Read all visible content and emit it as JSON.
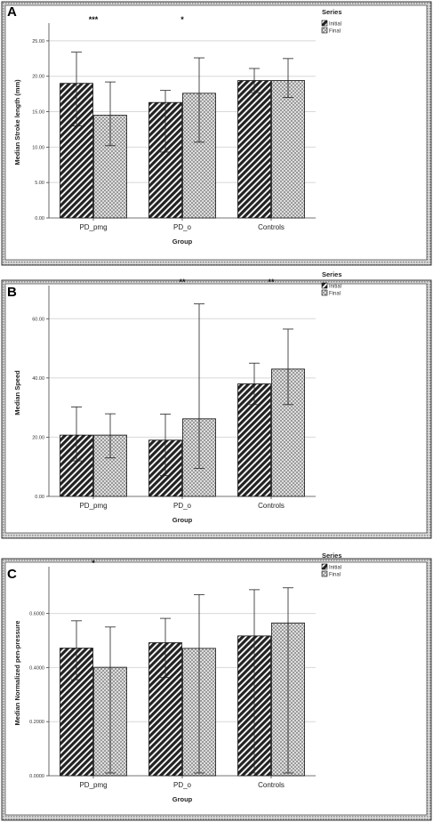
{
  "colors": {
    "initial_fill": "#222222",
    "final_fill": "#f0f0f0",
    "grid": "#d8d8d8",
    "frame": "#777777"
  },
  "legend": {
    "title": "Series",
    "items": [
      {
        "label": "Initial",
        "pattern": "diagonal-hatch"
      },
      {
        "label": "Final",
        "pattern": "crosshatch"
      }
    ]
  },
  "chart_data": [
    {
      "type": "bar",
      "panel_label": "A",
      "categories": [
        "PD_pmg",
        "PD_o",
        "Controls"
      ],
      "xlabel": "Group",
      "ylabel": "Median Stroke length (mm)",
      "ylim": [
        0,
        27
      ],
      "yticks": [
        0,
        5,
        10,
        15,
        20,
        25
      ],
      "ytick_labels": [
        "0.00",
        "5.00",
        "10.00",
        "15.00",
        "20.00",
        "25.00"
      ],
      "grid": true,
      "legend_position": "top-right",
      "series": [
        {
          "name": "Initial",
          "values": [
            19.0,
            16.3,
            19.4
          ],
          "err_low": [
            13.0,
            9.3,
            17.7
          ],
          "err_high": [
            23.4,
            18.0,
            21.1
          ]
        },
        {
          "name": "Final",
          "values": [
            14.5,
            17.6,
            19.4
          ],
          "err_low": [
            10.2,
            10.7,
            17.0
          ],
          "err_high": [
            19.2,
            22.6,
            22.5
          ]
        }
      ],
      "significance": [
        {
          "category": "PD_pmg",
          "label": "***"
        },
        {
          "category": "PD_o",
          "label": "*"
        }
      ]
    },
    {
      "type": "bar",
      "panel_label": "B",
      "categories": [
        "PD_pmg",
        "PD_o",
        "Controls"
      ],
      "xlabel": "Group",
      "ylabel": "Median Speed",
      "ylim": [
        0,
        70
      ],
      "yticks": [
        0,
        20,
        40,
        60
      ],
      "ytick_labels": [
        "0.00",
        "20.00",
        "40.00",
        "60.00"
      ],
      "grid": true,
      "legend_position": "top-right",
      "series": [
        {
          "name": "Initial",
          "values": [
            20.7,
            19.0,
            38.0
          ],
          "err_low": [
            12.0,
            7.0,
            31.0
          ],
          "err_high": [
            30.2,
            27.8,
            45.0
          ]
        },
        {
          "name": "Final",
          "values": [
            20.7,
            26.2,
            43.0
          ],
          "err_low": [
            13.0,
            9.5,
            31.0
          ],
          "err_high": [
            27.9,
            65.0,
            56.5
          ]
        }
      ],
      "significance": [
        {
          "category": "PD_o",
          "label": "**"
        },
        {
          "category": "Controls",
          "label": "**"
        }
      ]
    },
    {
      "type": "bar",
      "panel_label": "C",
      "categories": [
        "PD_pmg",
        "PD_o",
        "Controls"
      ],
      "xlabel": "Group",
      "ylabel": "Median Normalized pen-pressure",
      "ylim": [
        0,
        0.76
      ],
      "yticks": [
        0,
        0.2,
        0.4,
        0.6
      ],
      "ytick_labels": [
        "0.0000",
        "0.2000",
        "0.4000",
        "0.6000"
      ],
      "grid": true,
      "legend_position": "top-right",
      "series": [
        {
          "name": "Initial",
          "values": [
            0.472,
            0.492,
            0.517
          ],
          "err_low": [
            0.355,
            0.363,
            0.01
          ],
          "err_high": [
            0.573,
            0.582,
            0.688
          ]
        },
        {
          "name": "Final",
          "values": [
            0.401,
            0.471,
            0.565
          ],
          "err_low": [
            0.01,
            0.01,
            0.01
          ],
          "err_high": [
            0.55,
            0.67,
            0.695
          ]
        }
      ],
      "significance": [
        {
          "category": "PD_pmg",
          "label": "*"
        }
      ]
    }
  ]
}
